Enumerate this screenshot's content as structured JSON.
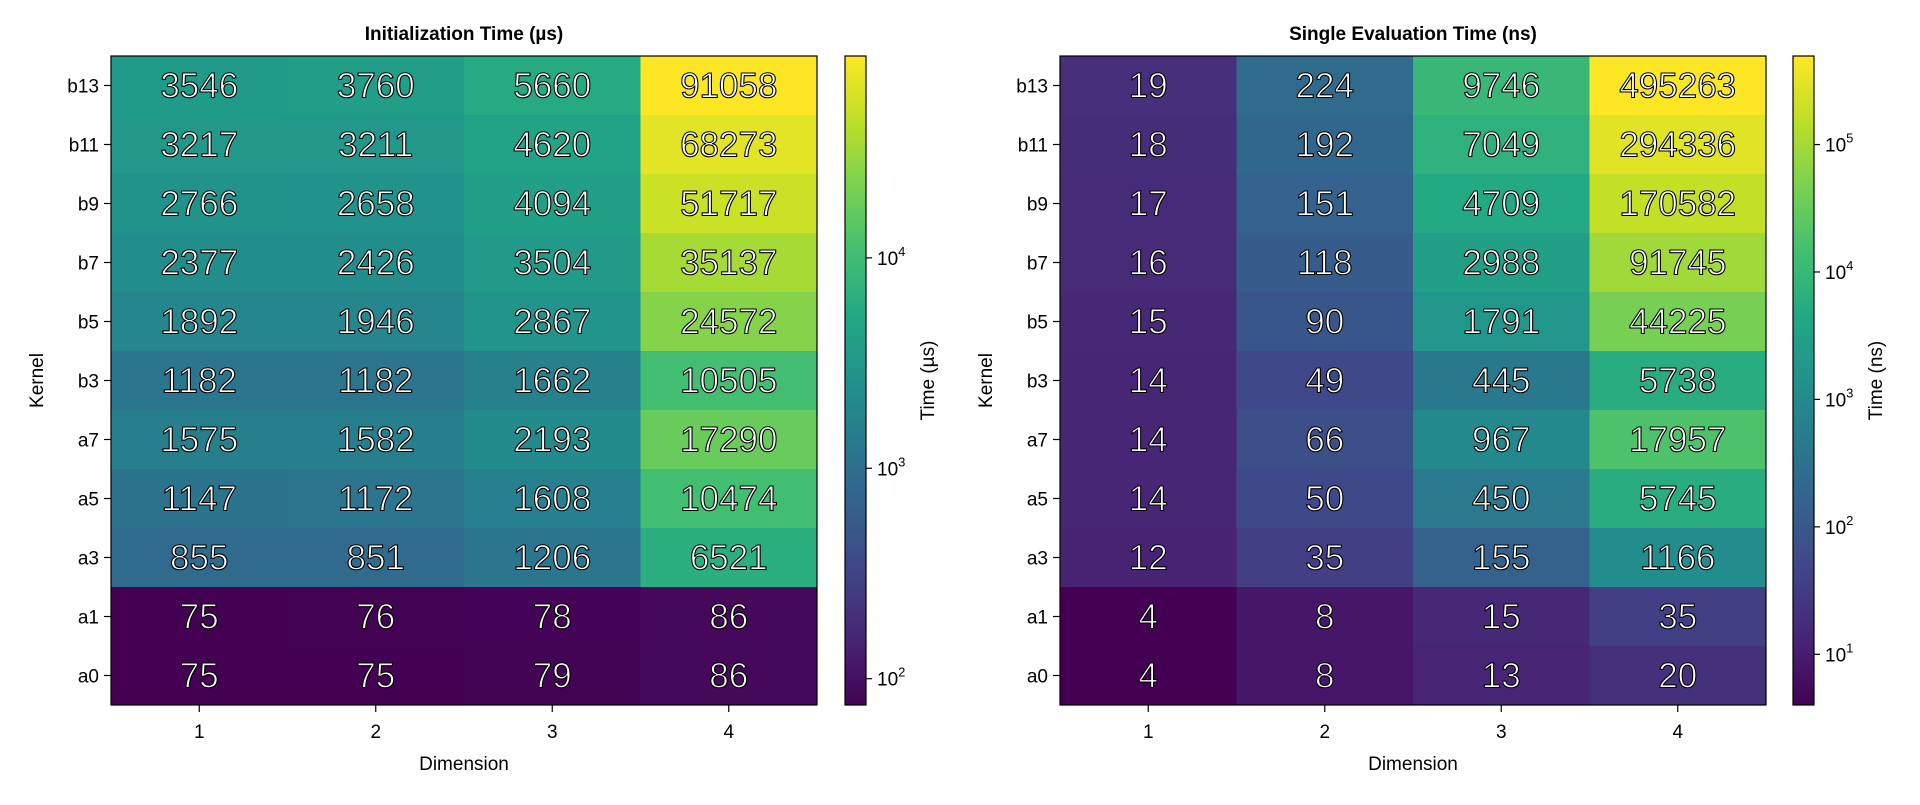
{
  "chart_data": [
    {
      "type": "heatmap",
      "title": "Initialization Time (µs)",
      "xlabel": "Dimension",
      "ylabel": "Kernel",
      "colorbar_label": "Time (µs)",
      "colorbar_scale": "log10",
      "colorbar_ticks": [
        {
          "value": 100,
          "base": "10",
          "exp": "2"
        },
        {
          "value": 1000,
          "base": "10",
          "exp": "3"
        },
        {
          "value": 10000,
          "base": "10",
          "exp": "4"
        }
      ],
      "colormap": "viridis",
      "x_categories": [
        "1",
        "2",
        "3",
        "4"
      ],
      "y_categories": [
        "b13",
        "b11",
        "b9",
        "b7",
        "b5",
        "b3",
        "a7",
        "a5",
        "a3",
        "a1",
        "a0"
      ],
      "values": [
        [
          3546,
          3760,
          5660,
          91058
        ],
        [
          3217,
          3211,
          4620,
          68273
        ],
        [
          2766,
          2658,
          4094,
          51717
        ],
        [
          2377,
          2426,
          3504,
          35137
        ],
        [
          1892,
          1946,
          2867,
          24572
        ],
        [
          1182,
          1182,
          1662,
          10505
        ],
        [
          1575,
          1582,
          2193,
          17290
        ],
        [
          1147,
          1172,
          1608,
          10474
        ],
        [
          855,
          851,
          1206,
          6521
        ],
        [
          75,
          76,
          78,
          86
        ],
        [
          75,
          75,
          79,
          86
        ]
      ]
    },
    {
      "type": "heatmap",
      "title": "Single Evaluation Time (ns)",
      "xlabel": "Dimension",
      "ylabel": "Kernel",
      "colorbar_label": "Time (ns)",
      "colorbar_scale": "log10",
      "colorbar_ticks": [
        {
          "value": 10,
          "base": "10",
          "exp": "1"
        },
        {
          "value": 100,
          "base": "10",
          "exp": "2"
        },
        {
          "value": 1000,
          "base": "10",
          "exp": "3"
        },
        {
          "value": 10000,
          "base": "10",
          "exp": "4"
        },
        {
          "value": 100000,
          "base": "10",
          "exp": "5"
        }
      ],
      "colormap": "viridis",
      "x_categories": [
        "1",
        "2",
        "3",
        "4"
      ],
      "y_categories": [
        "b13",
        "b11",
        "b9",
        "b7",
        "b5",
        "b3",
        "a7",
        "a5",
        "a3",
        "a1",
        "a0"
      ],
      "values": [
        [
          19,
          224,
          9746,
          495263
        ],
        [
          18,
          192,
          7049,
          294336
        ],
        [
          17,
          151,
          4709,
          170582
        ],
        [
          16,
          118,
          2988,
          91745
        ],
        [
          15,
          90,
          1791,
          44225
        ],
        [
          14,
          49,
          445,
          5738
        ],
        [
          14,
          66,
          967,
          17957
        ],
        [
          14,
          50,
          450,
          5745
        ],
        [
          12,
          35,
          155,
          1166
        ],
        [
          4,
          8,
          15,
          35
        ],
        [
          4,
          8,
          13,
          20
        ]
      ]
    }
  ]
}
